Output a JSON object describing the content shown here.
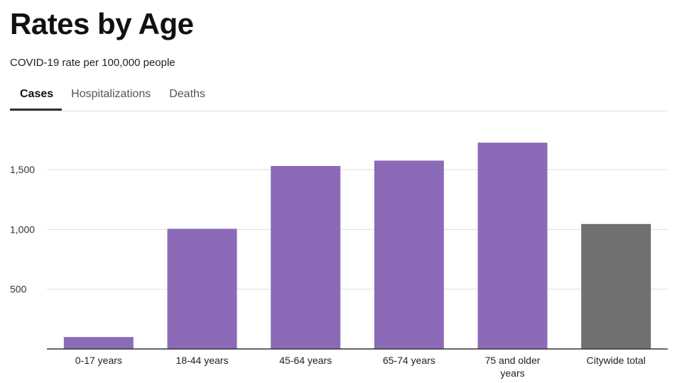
{
  "header": {
    "title": "Rates by Age",
    "subtitle": "COVID-19 rate per 100,000 people"
  },
  "tabs": [
    {
      "label": "Cases",
      "active": true
    },
    {
      "label": "Hospitalizations",
      "active": false
    },
    {
      "label": "Deaths",
      "active": false
    }
  ],
  "colors": {
    "age_bar": "#8b6bb8",
    "total_bar": "#707070",
    "gridline": "#dddddd",
    "axis": "#333333"
  },
  "chart_data": {
    "type": "bar",
    "categories": [
      "0-17 years",
      "18-44 years",
      "45-64 years",
      "65-74 years",
      "75 and older years",
      "Citywide total"
    ],
    "category_lines": [
      [
        "0-17 years"
      ],
      [
        "18-44 years"
      ],
      [
        "45-64 years"
      ],
      [
        "65-74 years"
      ],
      [
        "75 and older",
        "years"
      ],
      [
        "Citywide total"
      ]
    ],
    "values": [
      100,
      1005,
      1530,
      1575,
      1725,
      1045
    ],
    "ylim": [
      0,
      1800
    ],
    "yticks": [
      500,
      1000,
      1500
    ],
    "ytick_labels": [
      "500",
      "1,000",
      "1,500"
    ],
    "grid": true
  }
}
